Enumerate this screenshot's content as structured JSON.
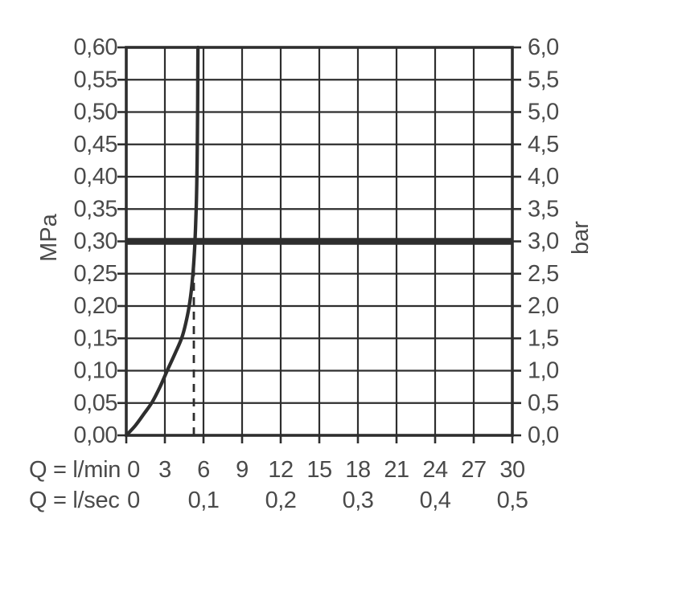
{
  "figure": {
    "background": "#ffffff",
    "y_left_axis": {
      "title": "MPa",
      "tick_labels": [
        "0,60",
        "0,55",
        "0,50",
        "0,45",
        "0,40",
        "0,35",
        "0,30",
        "0,25",
        "0,20",
        "0,15",
        "0,10",
        "0,05",
        "0,00"
      ]
    },
    "y_right_axis": {
      "title": "bar",
      "tick_labels": [
        "6,0",
        "5,5",
        "5,0",
        "4,5",
        "4,0",
        "3,5",
        "3,0",
        "2,5",
        "2,0",
        "1,5",
        "1,0",
        "0,5",
        "0,0"
      ]
    },
    "x_axis_rows": [
      {
        "label": "Q = l/min",
        "tick_labels": [
          "0",
          "3",
          "6",
          "9",
          "12",
          "15",
          "18",
          "21",
          "24",
          "27",
          "30"
        ],
        "positions_lmin": [
          0,
          3,
          6,
          9,
          12,
          15,
          18,
          21,
          24,
          27,
          30
        ]
      },
      {
        "label": "Q = l/sec",
        "tick_labels": [
          "0",
          "0,1",
          "0,2",
          "0,3",
          "0,4",
          "0,5"
        ],
        "positions_lmin": [
          0,
          6,
          12,
          18,
          24,
          30
        ]
      }
    ]
  },
  "chart_data": {
    "type": "line",
    "x_axis": {
      "label_primary": "Q = l/min",
      "label_secondary": "Q = l/sec",
      "range_lmin": [
        0,
        30
      ],
      "tick_step_lmin": 3,
      "ticks_lsec": [
        0,
        0.1,
        0.2,
        0.3,
        0.4,
        0.5
      ]
    },
    "y_axis": {
      "label_left": "MPa",
      "range_mpa": [
        0,
        0.6
      ],
      "tick_step_mpa": 0.05,
      "label_right": "bar",
      "range_bar": [
        0,
        6
      ],
      "tick_step_bar": 0.5
    },
    "grid": true,
    "legend": false,
    "series": [
      {
        "name": "pressure-flow-curve",
        "points_lmin_mpa": [
          [
            0,
            0
          ],
          [
            0.7,
            0.015
          ],
          [
            1.4,
            0.034
          ],
          [
            2.0,
            0.051
          ],
          [
            2.6,
            0.074
          ],
          [
            3.2,
            0.101
          ],
          [
            3.8,
            0.127
          ],
          [
            4.35,
            0.153
          ],
          [
            4.75,
            0.185
          ],
          [
            5.0,
            0.215
          ],
          [
            5.18,
            0.25
          ],
          [
            5.3,
            0.285
          ],
          [
            5.38,
            0.32
          ],
          [
            5.44,
            0.355
          ],
          [
            5.48,
            0.39
          ],
          [
            5.51,
            0.43
          ],
          [
            5.53,
            0.47
          ],
          [
            5.55,
            0.52
          ],
          [
            5.56,
            0.565
          ],
          [
            5.57,
            0.6
          ]
        ]
      }
    ],
    "reference_line": {
      "orientation": "horizontal",
      "value_mpa": 0.3,
      "value_bar": 3.0
    },
    "dashed_marker": {
      "x_lmin": 5.25,
      "from_mpa": 0,
      "to_mpa": 0.27
    },
    "colors": {
      "lines": "#2e2e2e",
      "text": "#4a4a4a",
      "background": "#ffffff"
    }
  }
}
